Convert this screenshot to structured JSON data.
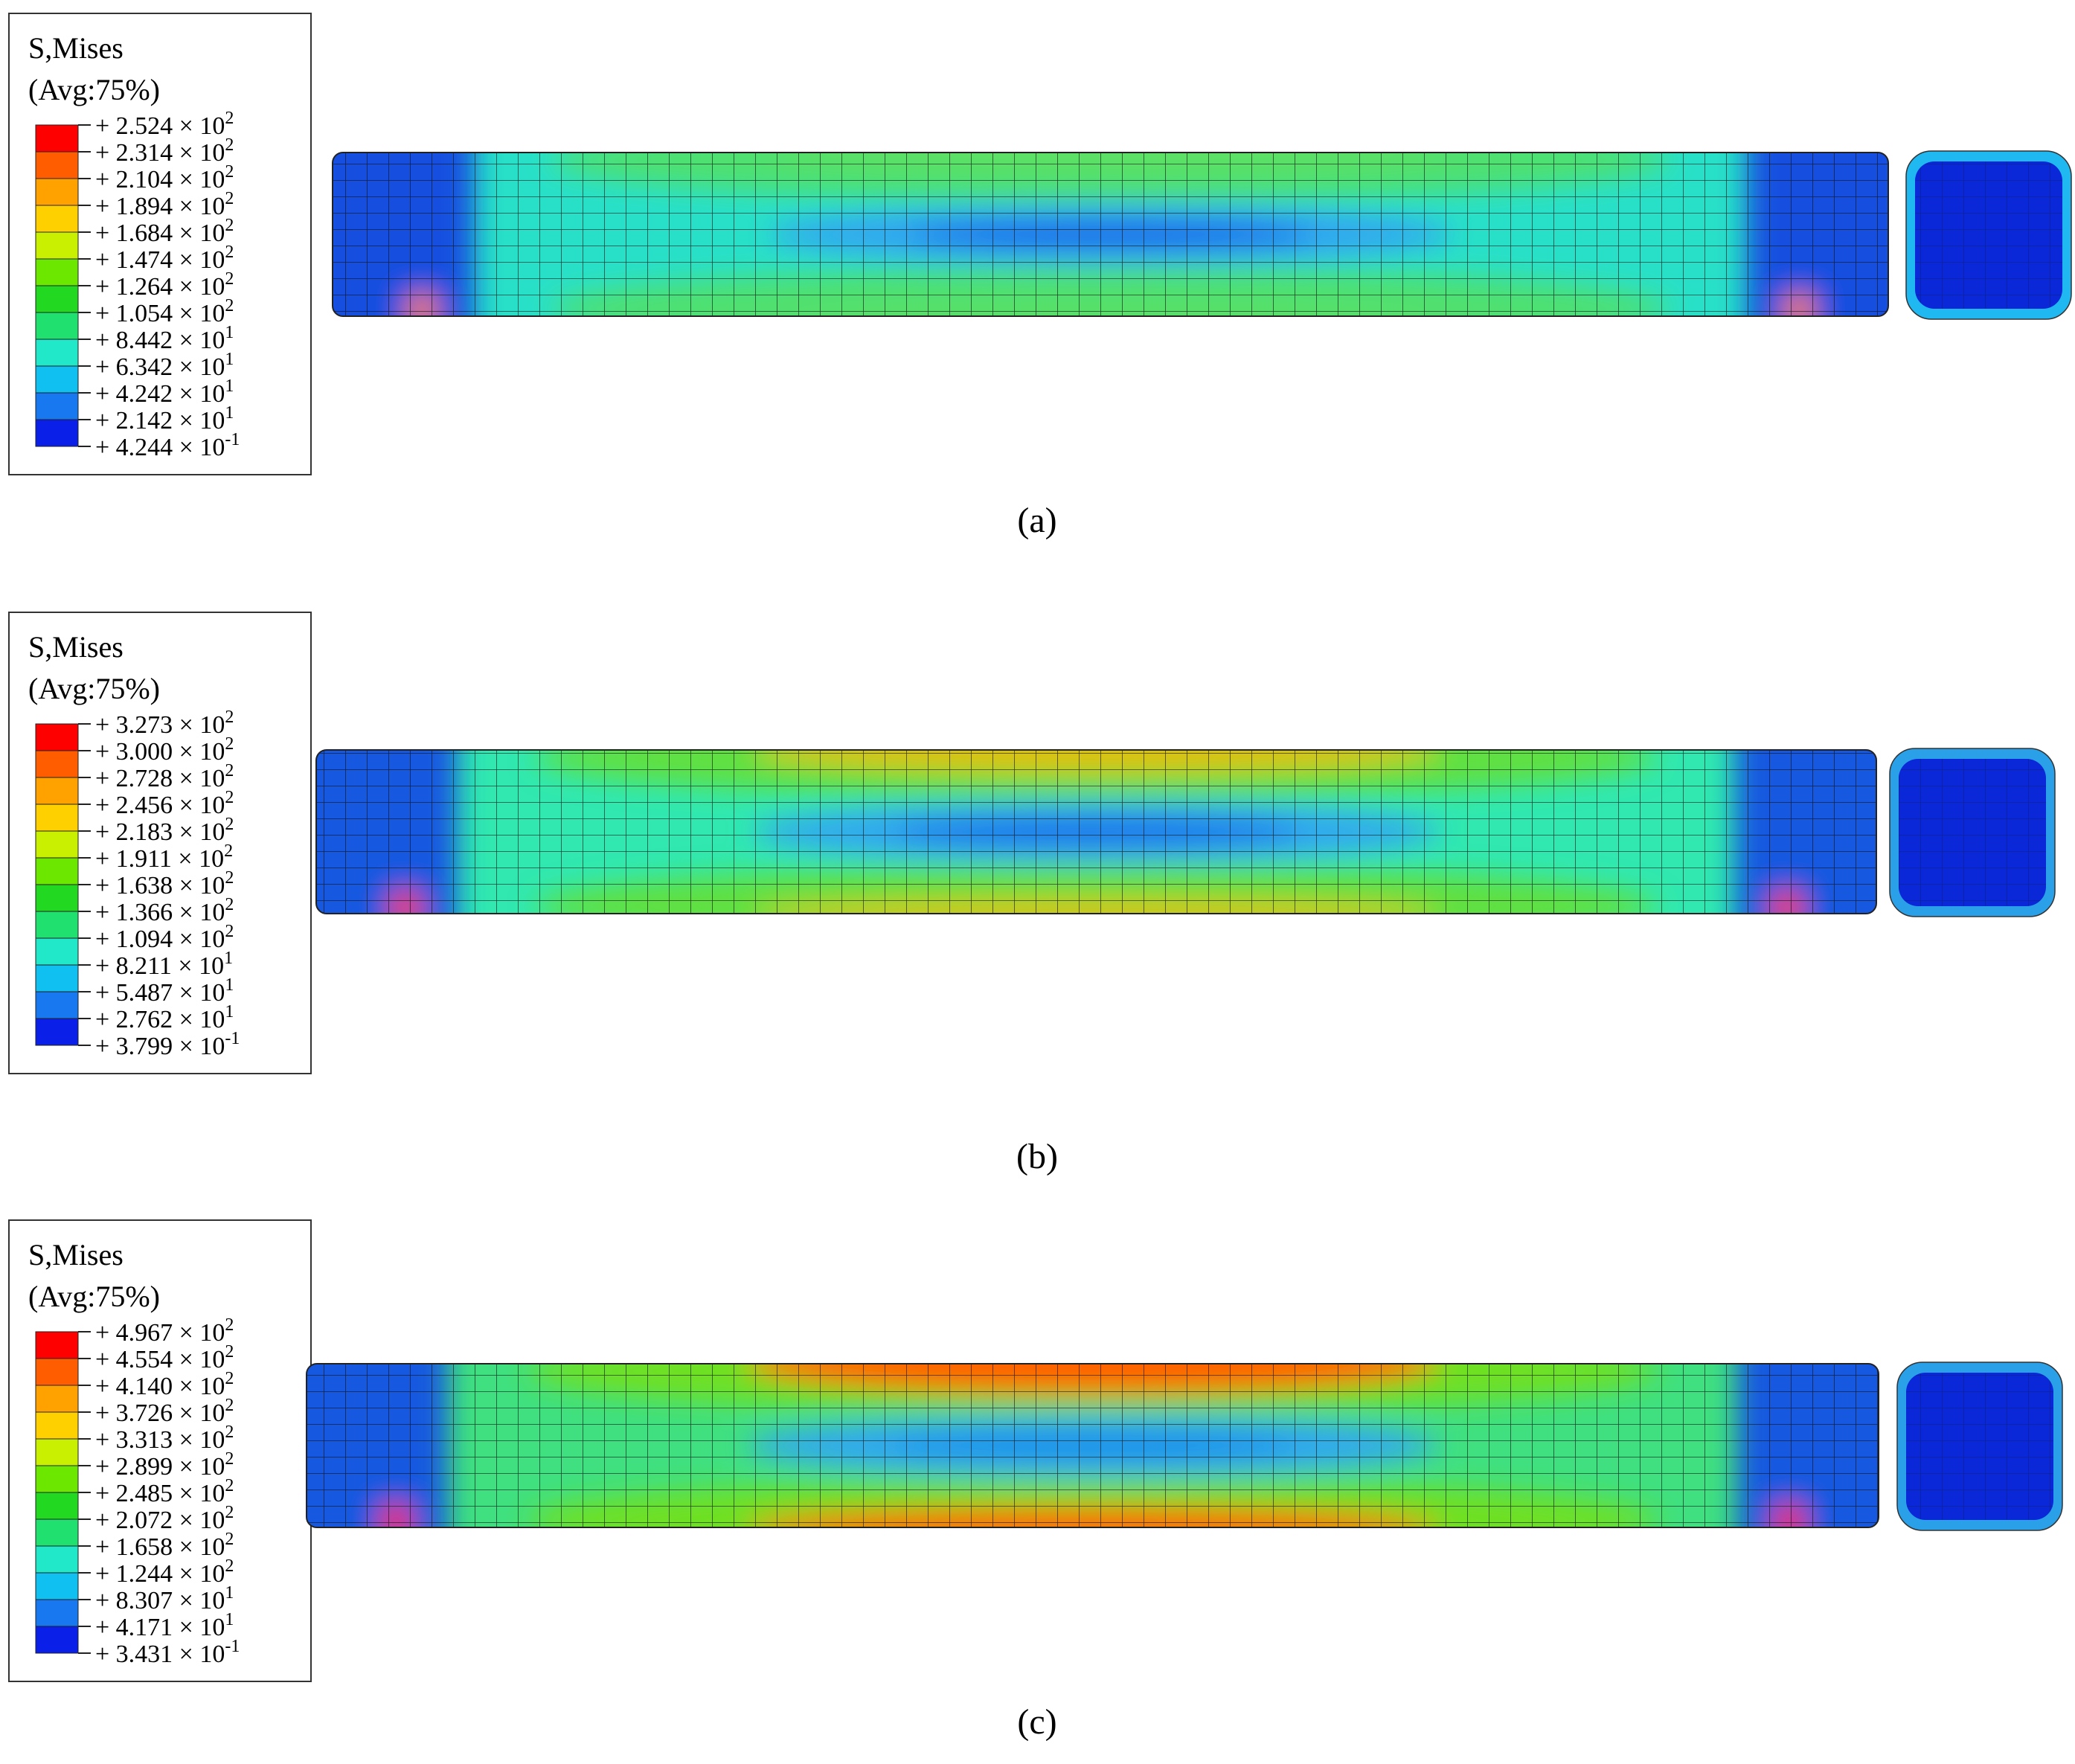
{
  "panels": [
    {
      "legend": {
        "title": "S,Mises",
        "subtitle": "(Avg:75%)",
        "colors": [
          "#ff0000",
          "#ff5d00",
          "#ffa200",
          "#ffd000",
          "#c8f000",
          "#6ce800",
          "#22d820",
          "#20e070",
          "#20e8c8",
          "#10c0f0",
          "#1878f0",
          "#0a20e8"
        ],
        "entries": [
          {
            "text": "+ 2.524 × 10",
            "exp": "2"
          },
          {
            "text": "+ 2.314 × 10",
            "exp": "2"
          },
          {
            "text": "+ 2.104 × 10",
            "exp": "2"
          },
          {
            "text": "+ 1.894 × 10",
            "exp": "2"
          },
          {
            "text": "+ 1.684 × 10",
            "exp": "2"
          },
          {
            "text": "+ 1.474 × 10",
            "exp": "2"
          },
          {
            "text": "+ 1.264 × 10",
            "exp": "2"
          },
          {
            "text": "+ 1.054 × 10",
            "exp": "2"
          },
          {
            "text": "+ 8.442 × 10",
            "exp": "1"
          },
          {
            "text": "+ 6.342 × 10",
            "exp": "1"
          },
          {
            "text": "+ 4.242 × 10",
            "exp": "1"
          },
          {
            "text": "+ 2.142 × 10",
            "exp": "1"
          },
          {
            "text": "+ 4.244 × 10",
            "exp": "-1"
          }
        ]
      },
      "caption": "(a)"
    },
    {
      "legend": {
        "title": "S,Mises",
        "subtitle": "(Avg:75%)",
        "colors": [
          "#ff0000",
          "#ff5d00",
          "#ffa200",
          "#ffd000",
          "#c8f000",
          "#6ce800",
          "#22d820",
          "#20e070",
          "#20e8c8",
          "#10c0f0",
          "#1878f0",
          "#0a20e8"
        ],
        "entries": [
          {
            "text": "+ 3.273 × 10",
            "exp": "2"
          },
          {
            "text": "+ 3.000 × 10",
            "exp": "2"
          },
          {
            "text": "+ 2.728 × 10",
            "exp": "2"
          },
          {
            "text": "+ 2.456 × 10",
            "exp": "2"
          },
          {
            "text": "+ 2.183 × 10",
            "exp": "2"
          },
          {
            "text": "+ 1.911 × 10",
            "exp": "2"
          },
          {
            "text": "+ 1.638 × 10",
            "exp": "2"
          },
          {
            "text": "+ 1.366 × 10",
            "exp": "2"
          },
          {
            "text": "+ 1.094 × 10",
            "exp": "2"
          },
          {
            "text": "+ 8.211 × 10",
            "exp": "1"
          },
          {
            "text": "+ 5.487 × 10",
            "exp": "1"
          },
          {
            "text": "+ 2.762 × 10",
            "exp": "1"
          },
          {
            "text": "+ 3.799 × 10",
            "exp": "-1"
          }
        ]
      },
      "caption": "(b)"
    },
    {
      "legend": {
        "title": "S,Mises",
        "subtitle": "(Avg:75%)",
        "colors": [
          "#ff0000",
          "#ff5d00",
          "#ffa200",
          "#ffd000",
          "#c8f000",
          "#6ce800",
          "#22d820",
          "#20e070",
          "#20e8c8",
          "#10c0f0",
          "#1878f0",
          "#0a20e8"
        ],
        "entries": [
          {
            "text": "+ 4.967 × 10",
            "exp": "2"
          },
          {
            "text": "+ 4.554 × 10",
            "exp": "2"
          },
          {
            "text": "+ 4.140 × 10",
            "exp": "2"
          },
          {
            "text": "+ 3.726 × 10",
            "exp": "2"
          },
          {
            "text": "+ 3.313 × 10",
            "exp": "2"
          },
          {
            "text": "+ 2.899 × 10",
            "exp": "2"
          },
          {
            "text": "+ 2.485 × 10",
            "exp": "2"
          },
          {
            "text": "+ 2.072 × 10",
            "exp": "2"
          },
          {
            "text": "+ 1.658 × 10",
            "exp": "2"
          },
          {
            "text": "+ 1.244 × 10",
            "exp": "2"
          },
          {
            "text": "+ 8.307 × 10",
            "exp": "1"
          },
          {
            "text": "+ 4.171 × 10",
            "exp": "1"
          },
          {
            "text": "+ 3.431 × 10",
            "exp": "-1"
          }
        ]
      },
      "caption": "(c)"
    }
  ]
}
